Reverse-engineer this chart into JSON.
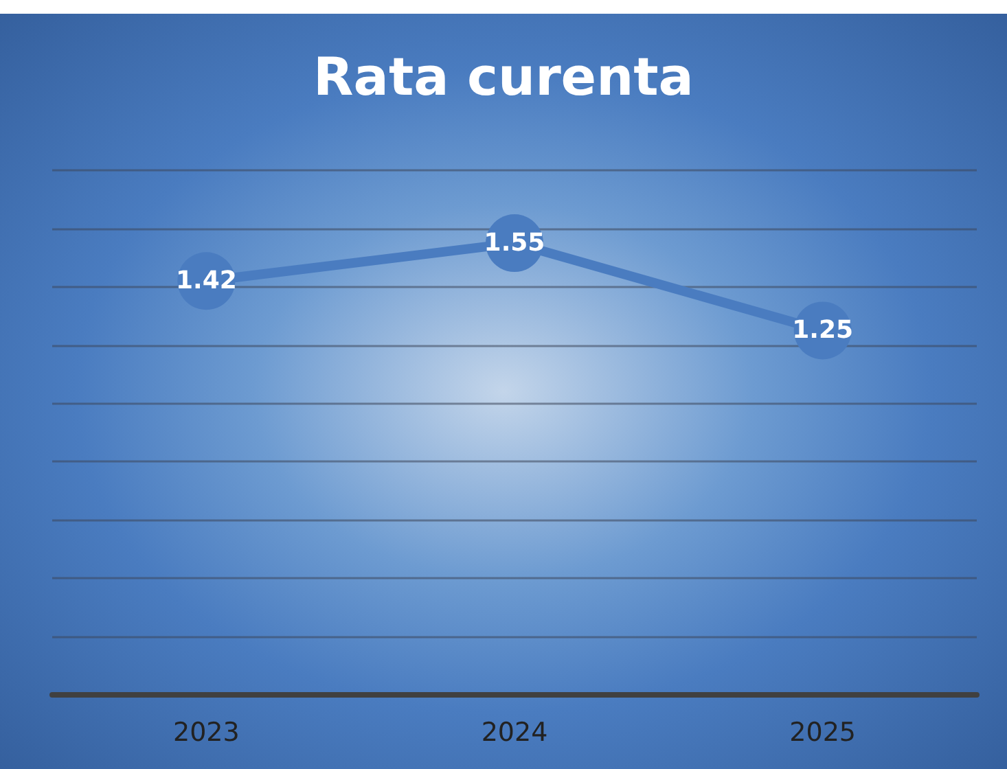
{
  "chart_data": {
    "type": "line",
    "title": "Rata curenta",
    "categories": [
      "2023",
      "2024",
      "2025"
    ],
    "series": [
      {
        "color": "#4a7cc0",
        "values": [
          1.42,
          1.55,
          1.25
        ]
      }
    ],
    "ylim": [
      0,
      1.8
    ],
    "yticks": [
      {
        "value": 0,
        "label": null
      },
      {
        "value": 0.2,
        "label": null
      },
      {
        "value": 0.4,
        "label": null
      },
      {
        "value": 0.6,
        "label": null
      },
      {
        "value": 0.8,
        "label": null
      },
      {
        "value": 1,
        "label": null
      },
      {
        "value": 1.2,
        "label": null
      },
      {
        "value": 1.4,
        "label": null
      },
      {
        "value": 1.6,
        "label": null
      },
      {
        "value": 1.8,
        "label": null
      }
    ],
    "tick_labels": "x",
    "grid": "y",
    "data_labels": true,
    "marker": "circle"
  }
}
